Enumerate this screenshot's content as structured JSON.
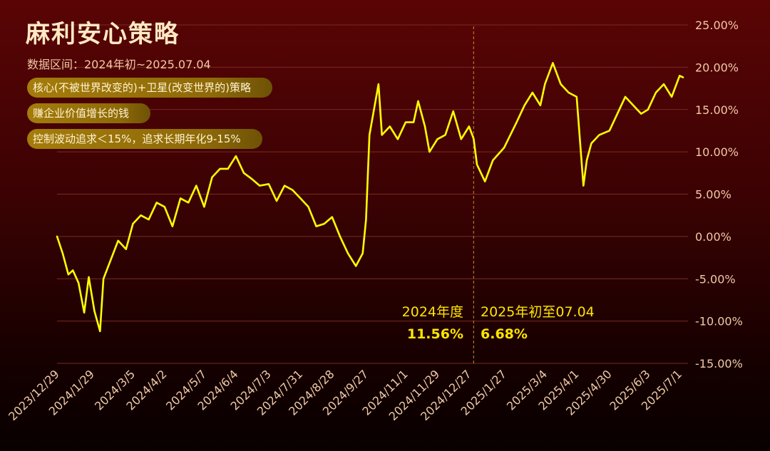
{
  "header": {
    "title": "麻利安心策略",
    "subtitle": "数据区间：2024年初~2025.07.04",
    "tags": [
      "核心(不被世界改变的)+卫星(改变世界的)策略",
      "赚企业价值增长的钱",
      "控制波动追求＜15%，追求长期年化9-15%"
    ]
  },
  "annotations": {
    "year2024_label": "2024年度",
    "year2024_value": "11.56%",
    "ytd2025_label": "2025年初至07.04",
    "ytd2025_value": "6.68%"
  },
  "colors": {
    "line": "#ffff00",
    "axis_text": "#f1c9a5",
    "grid": "#7a2a22",
    "divider": "#d08a3a",
    "annotation": "#ffe400"
  },
  "chart_data": {
    "type": "line",
    "title": "麻利安心策略",
    "ylim": [
      -15,
      25
    ],
    "ytick_values": [
      25,
      20,
      15,
      10,
      5,
      0,
      -5,
      -10,
      -15
    ],
    "ytick_labels": [
      "25.00%",
      "20.00%",
      "15.00%",
      "10.00%",
      "5.00%",
      "0.00%",
      "-5.00%",
      "-10.00%",
      "-15.00%"
    ],
    "xtick_labels": [
      "2023/12/29",
      "2024/1/29",
      "2024/3/5",
      "2024/4/2",
      "2024/5/7",
      "2024/6/4",
      "2024/7/3",
      "2024/7/31",
      "2024/8/28",
      "2024/9/27",
      "2024/11/1",
      "2024/11/29",
      "2024/12/27",
      "2025/1/27",
      "2025/3/4",
      "2025/4/1",
      "2025/4/30",
      "2025/6/3",
      "2025/7/1"
    ],
    "divider_date": "2024/12/31",
    "grid": "horizontal",
    "legend": "none",
    "series": [
      {
        "values": [
          {
            "x": "2023/12/29",
            "y": 0.0
          },
          {
            "x": "2024/1/3",
            "y": -2.0
          },
          {
            "x": "2024/1/8",
            "y": -4.5
          },
          {
            "x": "2024/1/12",
            "y": -4.0
          },
          {
            "x": "2024/1/17",
            "y": -5.5
          },
          {
            "x": "2024/1/22",
            "y": -9.0
          },
          {
            "x": "2024/1/26",
            "y": -4.8
          },
          {
            "x": "2024/1/31",
            "y": -8.8
          },
          {
            "x": "2024/2/5",
            "y": -11.2
          },
          {
            "x": "2024/2/8",
            "y": -5.0
          },
          {
            "x": "2024/2/21",
            "y": -0.5
          },
          {
            "x": "2024/2/28",
            "y": -1.5
          },
          {
            "x": "2024/3/5",
            "y": 1.5
          },
          {
            "x": "2024/3/12",
            "y": 2.5
          },
          {
            "x": "2024/3/19",
            "y": 2.0
          },
          {
            "x": "2024/3/26",
            "y": 4.0
          },
          {
            "x": "2024/4/2",
            "y": 3.5
          },
          {
            "x": "2024/4/9",
            "y": 1.2
          },
          {
            "x": "2024/4/16",
            "y": 4.5
          },
          {
            "x": "2024/4/23",
            "y": 4.0
          },
          {
            "x": "2024/4/30",
            "y": 6.0
          },
          {
            "x": "2024/5/7",
            "y": 3.5
          },
          {
            "x": "2024/5/14",
            "y": 7.0
          },
          {
            "x": "2024/5/21",
            "y": 8.0
          },
          {
            "x": "2024/5/28",
            "y": 8.0
          },
          {
            "x": "2024/6/4",
            "y": 9.5
          },
          {
            "x": "2024/6/11",
            "y": 7.5
          },
          {
            "x": "2024/6/18",
            "y": 6.8
          },
          {
            "x": "2024/6/25",
            "y": 6.0
          },
          {
            "x": "2024/7/3",
            "y": 6.2
          },
          {
            "x": "2024/7/10",
            "y": 4.2
          },
          {
            "x": "2024/7/17",
            "y": 6.0
          },
          {
            "x": "2024/7/24",
            "y": 5.5
          },
          {
            "x": "2024/7/31",
            "y": 4.5
          },
          {
            "x": "2024/8/7",
            "y": 3.5
          },
          {
            "x": "2024/8/14",
            "y": 1.2
          },
          {
            "x": "2024/8/21",
            "y": 1.5
          },
          {
            "x": "2024/8/28",
            "y": 2.3
          },
          {
            "x": "2024/9/4",
            "y": 0.0
          },
          {
            "x": "2024/9/11",
            "y": -2.0
          },
          {
            "x": "2024/9/18",
            "y": -3.5
          },
          {
            "x": "2024/9/24",
            "y": -2.0
          },
          {
            "x": "2024/9/27",
            "y": 2.0
          },
          {
            "x": "2024/9/30",
            "y": 12.0
          },
          {
            "x": "2024/10/8",
            "y": 18.0
          },
          {
            "x": "2024/10/11",
            "y": 12.0
          },
          {
            "x": "2024/10/18",
            "y": 13.0
          },
          {
            "x": "2024/10/25",
            "y": 11.5
          },
          {
            "x": "2024/11/1",
            "y": 13.5
          },
          {
            "x": "2024/11/8",
            "y": 13.5
          },
          {
            "x": "2024/11/12",
            "y": 16.0
          },
          {
            "x": "2024/11/18",
            "y": 13.0
          },
          {
            "x": "2024/11/22",
            "y": 10.0
          },
          {
            "x": "2024/11/29",
            "y": 11.5
          },
          {
            "x": "2024/12/6",
            "y": 12.0
          },
          {
            "x": "2024/12/13",
            "y": 14.8
          },
          {
            "x": "2024/12/20",
            "y": 11.5
          },
          {
            "x": "2024/12/27",
            "y": 13.0
          },
          {
            "x": "2024/12/31",
            "y": 11.56
          },
          {
            "x": "2025/1/3",
            "y": 8.5
          },
          {
            "x": "2025/1/10",
            "y": 6.5
          },
          {
            "x": "2025/1/17",
            "y": 9.0
          },
          {
            "x": "2025/1/27",
            "y": 10.5
          },
          {
            "x": "2025/2/7",
            "y": 13.5
          },
          {
            "x": "2025/2/14",
            "y": 15.5
          },
          {
            "x": "2025/2/21",
            "y": 17.0
          },
          {
            "x": "2025/2/28",
            "y": 15.5
          },
          {
            "x": "2025/3/4",
            "y": 18.0
          },
          {
            "x": "2025/3/11",
            "y": 20.5
          },
          {
            "x": "2025/3/18",
            "y": 18.0
          },
          {
            "x": "2025/3/25",
            "y": 17.0
          },
          {
            "x": "2025/4/1",
            "y": 16.5
          },
          {
            "x": "2025/4/7",
            "y": 6.0
          },
          {
            "x": "2025/4/10",
            "y": 9.0
          },
          {
            "x": "2025/4/14",
            "y": 11.0
          },
          {
            "x": "2025/4/21",
            "y": 12.0
          },
          {
            "x": "2025/4/30",
            "y": 12.5
          },
          {
            "x": "2025/5/7",
            "y": 14.5
          },
          {
            "x": "2025/5/14",
            "y": 16.5
          },
          {
            "x": "2025/5/21",
            "y": 15.5
          },
          {
            "x": "2025/5/28",
            "y": 14.5
          },
          {
            "x": "2025/6/3",
            "y": 15.0
          },
          {
            "x": "2025/6/10",
            "y": 17.0
          },
          {
            "x": "2025/6/17",
            "y": 18.0
          },
          {
            "x": "2025/6/24",
            "y": 16.5
          },
          {
            "x": "2025/7/1",
            "y": 19.0
          },
          {
            "x": "2025/7/4",
            "y": 18.8
          }
        ]
      }
    ]
  }
}
